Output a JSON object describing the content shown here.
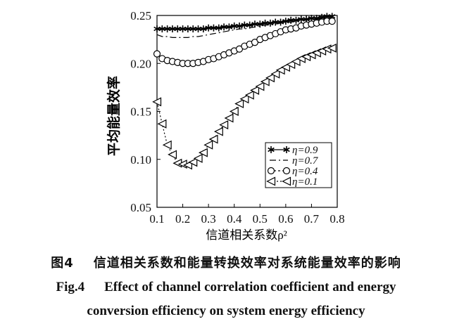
{
  "chart_data": {
    "type": "line",
    "xlabel": "信道相关系数ρ²",
    "ylabel": "平均能量效率",
    "xlim": [
      0.1,
      0.8
    ],
    "ylim": [
      0.05,
      0.25
    ],
    "xticks": [
      "0.1",
      "0.2",
      "0.3",
      "0.4",
      "0.5",
      "0.6",
      "0.7",
      "0.8"
    ],
    "yticks": [
      "0.05",
      "0.10",
      "0.15",
      "0.20",
      "0.25"
    ],
    "grid": false,
    "legend_position": "bottom-right",
    "series": [
      {
        "name": "η=0.9",
        "marker": "asterisk",
        "x": [
          0.1,
          0.12,
          0.14,
          0.16,
          0.18,
          0.2,
          0.22,
          0.24,
          0.26,
          0.28,
          0.3,
          0.32,
          0.34,
          0.36,
          0.38,
          0.4,
          0.42,
          0.44,
          0.46,
          0.48,
          0.5,
          0.52,
          0.54,
          0.56,
          0.58,
          0.6,
          0.62,
          0.64,
          0.66,
          0.68,
          0.7,
          0.72,
          0.74,
          0.76,
          0.78
        ],
        "values": [
          0.236,
          0.236,
          0.236,
          0.236,
          0.236,
          0.236,
          0.236,
          0.236,
          0.236,
          0.236,
          0.237,
          0.237,
          0.237,
          0.238,
          0.238,
          0.239,
          0.239,
          0.24,
          0.24,
          0.241,
          0.241,
          0.242,
          0.242,
          0.243,
          0.243,
          0.244,
          0.245,
          0.245,
          0.246,
          0.246,
          0.247,
          0.247,
          0.248,
          0.249,
          0.249
        ]
      },
      {
        "name": "η=0.7",
        "marker": "none",
        "x": [
          0.1,
          0.12,
          0.14,
          0.16,
          0.18,
          0.2,
          0.22,
          0.24,
          0.26,
          0.28,
          0.3,
          0.32,
          0.34,
          0.36,
          0.38,
          0.4,
          0.42,
          0.44,
          0.46,
          0.48,
          0.5,
          0.52,
          0.54,
          0.56,
          0.58,
          0.6,
          0.62,
          0.64,
          0.66,
          0.68,
          0.7,
          0.72,
          0.74,
          0.76,
          0.78
        ],
        "values": [
          0.23,
          0.228,
          0.228,
          0.227,
          0.227,
          0.227,
          0.227,
          0.228,
          0.228,
          0.229,
          0.23,
          0.231,
          0.232,
          0.233,
          0.234,
          0.235,
          0.236,
          0.236,
          0.237,
          0.238,
          0.239,
          0.24,
          0.24,
          0.241,
          0.242,
          0.243,
          0.243,
          0.244,
          0.245,
          0.245,
          0.246,
          0.246,
          0.247,
          0.247,
          0.248
        ]
      },
      {
        "name": "η=0.4",
        "marker": "circle",
        "x": [
          0.1,
          0.12,
          0.14,
          0.16,
          0.18,
          0.2,
          0.22,
          0.24,
          0.26,
          0.28,
          0.3,
          0.32,
          0.34,
          0.36,
          0.38,
          0.4,
          0.42,
          0.44,
          0.46,
          0.48,
          0.5,
          0.52,
          0.54,
          0.56,
          0.58,
          0.6,
          0.62,
          0.64,
          0.66,
          0.68,
          0.7,
          0.72,
          0.74,
          0.76,
          0.78
        ],
        "values": [
          0.21,
          0.205,
          0.203,
          0.202,
          0.201,
          0.2,
          0.2,
          0.2,
          0.201,
          0.202,
          0.204,
          0.205,
          0.207,
          0.209,
          0.211,
          0.213,
          0.215,
          0.218,
          0.22,
          0.222,
          0.225,
          0.227,
          0.229,
          0.231,
          0.233,
          0.235,
          0.236,
          0.237,
          0.239,
          0.24,
          0.241,
          0.242,
          0.243,
          0.244,
          0.244
        ]
      },
      {
        "name": "η=0.1",
        "marker": "triangle-left",
        "x": [
          0.1,
          0.12,
          0.14,
          0.16,
          0.18,
          0.2,
          0.22,
          0.24,
          0.26,
          0.28,
          0.3,
          0.32,
          0.34,
          0.36,
          0.38,
          0.4,
          0.42,
          0.44,
          0.46,
          0.48,
          0.5,
          0.52,
          0.54,
          0.56,
          0.58,
          0.6,
          0.62,
          0.64,
          0.66,
          0.68,
          0.7,
          0.72,
          0.74,
          0.76,
          0.78
        ],
        "values": [
          0.16,
          0.137,
          0.115,
          0.105,
          0.096,
          0.095,
          0.094,
          0.097,
          0.101,
          0.107,
          0.115,
          0.121,
          0.129,
          0.136,
          0.143,
          0.15,
          0.158,
          0.163,
          0.167,
          0.172,
          0.176,
          0.181,
          0.185,
          0.189,
          0.193,
          0.196,
          0.199,
          0.202,
          0.205,
          0.207,
          0.209,
          0.211,
          0.213,
          0.215,
          0.216
        ]
      }
    ]
  },
  "caption": {
    "zh_label": "图4",
    "zh_text": "信道相关系数和能量转换效率对系统能量效率的影响",
    "en_label": "Fig.4",
    "en_line1": "Effect of channel correlation coefficient and energy",
    "en_line2": "conversion efficiency on system energy efficiency"
  }
}
